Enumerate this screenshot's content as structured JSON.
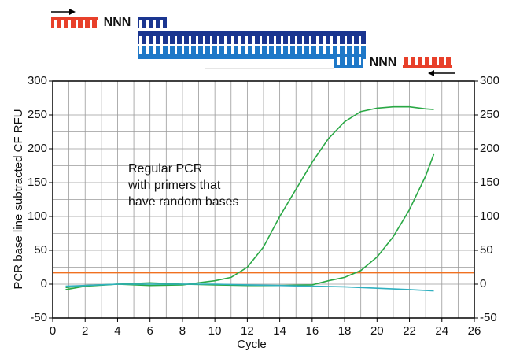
{
  "diagram": {
    "left_label": "NNN",
    "right_label": "NNN"
  },
  "chart_data": {
    "type": "line",
    "x_label": "Cycle",
    "y_label": "PCR base line subtracted CF RFU",
    "annotation": [
      "Regular PCR",
      "with primers that",
      "have random bases"
    ],
    "threshold": 17,
    "threshold_color": "#f07020",
    "xlim": [
      0,
      26
    ],
    "xticks": [
      0,
      2,
      4,
      6,
      8,
      10,
      12,
      14,
      16,
      18,
      20,
      22,
      24,
      26
    ],
    "ylim": [
      -50,
      300
    ],
    "yticks": [
      -50,
      0,
      50,
      100,
      150,
      200,
      250,
      300
    ],
    "y2lim": [
      -50,
      300
    ],
    "y2ticks": [
      -50,
      0,
      50,
      100,
      150,
      200,
      250,
      300
    ],
    "grid": true,
    "series": [
      {
        "color": "#2aa845",
        "x": [
          0.8,
          2,
          4,
          6,
          8,
          9,
          10,
          11,
          12,
          13,
          14,
          15,
          16,
          17,
          18,
          19,
          20,
          21,
          22,
          23,
          23.5
        ],
        "values": [
          -5,
          -2,
          0,
          -2,
          -1,
          2,
          5,
          10,
          25,
          55,
          100,
          140,
          180,
          215,
          240,
          255,
          260,
          262,
          262,
          259,
          258
        ]
      },
      {
        "color": "#2aa845",
        "x": [
          0.8,
          2,
          4,
          6,
          8,
          10,
          12,
          14,
          16,
          17,
          18,
          19,
          20,
          21,
          22,
          23,
          23.5
        ],
        "values": [
          -8,
          -3,
          0,
          2,
          0,
          -1,
          -2,
          -2,
          -1,
          5,
          10,
          20,
          40,
          70,
          110,
          160,
          192
        ]
      },
      {
        "color": "#30b0c0",
        "x": [
          0.8,
          2,
          4,
          6,
          8,
          10,
          12,
          14,
          16,
          18,
          20,
          22,
          23.5
        ],
        "values": [
          -3,
          -2,
          0,
          0,
          0,
          0,
          -1,
          -2,
          -3,
          -4,
          -6,
          -8,
          -10
        ]
      }
    ]
  }
}
